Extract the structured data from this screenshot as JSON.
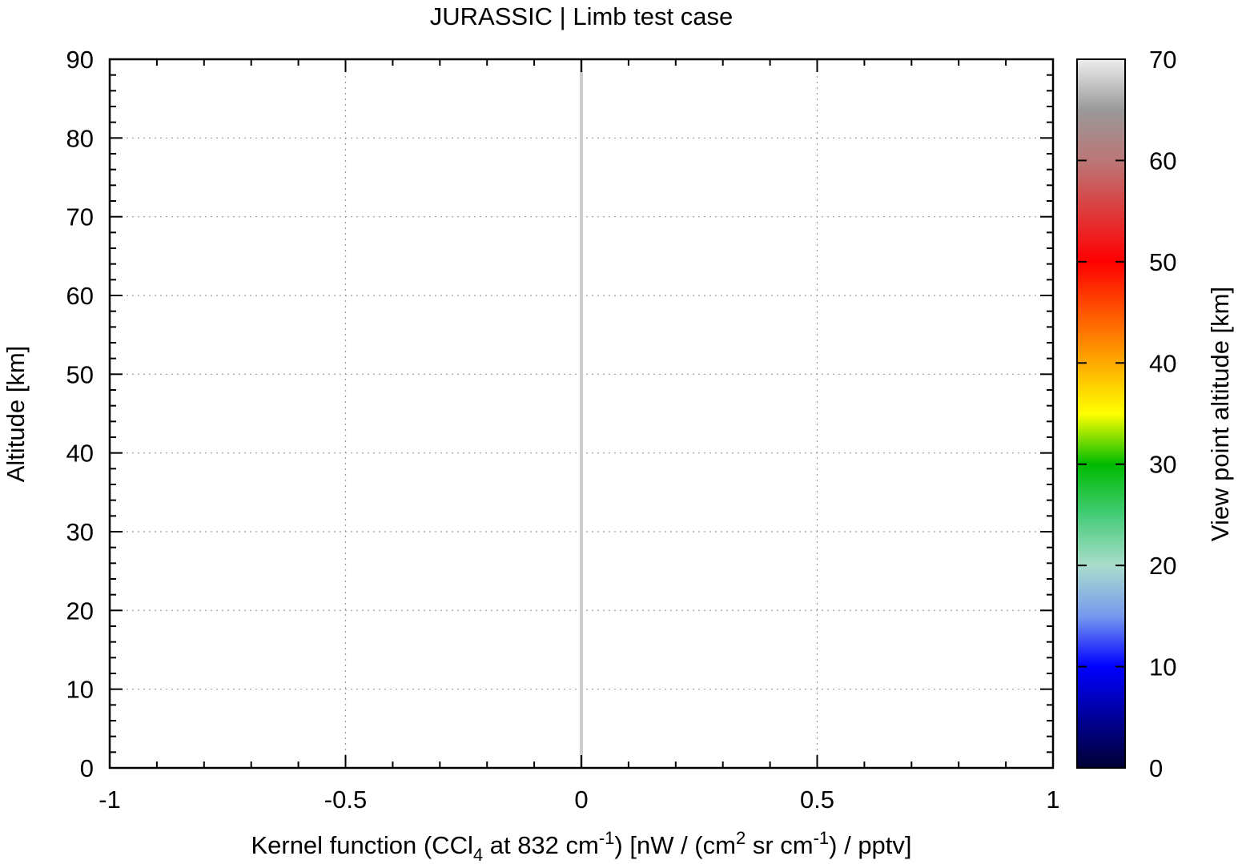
{
  "chart_data": {
    "type": "line",
    "title": "JURASSIC | Limb test case",
    "xlabel": {
      "p1": "Kernel function (CCl",
      "sub": "4",
      "p2": " at 832 cm",
      "sup1": "-1",
      "p3": ") [nW / (cm",
      "sup2": "2",
      "p4": " sr cm",
      "sup3": "-1",
      "p5": ") / pptv]"
    },
    "ylabel": "Altitude [km]",
    "colorbar_label": "View point altitude [km]",
    "xlim": [
      -1,
      1
    ],
    "ylim": [
      0,
      90
    ],
    "xticks": [
      -1,
      -0.5,
      0,
      0.5,
      1
    ],
    "xtick_labels": [
      "-1",
      "-0.5",
      "0",
      "0.5",
      "1"
    ],
    "yticks": [
      0,
      10,
      20,
      30,
      40,
      50,
      60,
      70,
      80,
      90
    ],
    "ytick_labels": [
      "0",
      "10",
      "20",
      "30",
      "40",
      "50",
      "60",
      "70",
      "80",
      "90"
    ],
    "colorbar_range": [
      0,
      70
    ],
    "colorbar_ticks": [
      0,
      10,
      20,
      30,
      40,
      50,
      60,
      70
    ],
    "colorbar_tick_labels": [
      "0",
      "10",
      "20",
      "30",
      "40",
      "50",
      "60",
      "70"
    ],
    "colorbar_colors": [
      {
        "v": 0,
        "c": "#000033"
      },
      {
        "v": 10,
        "c": "#0000ff"
      },
      {
        "v": 15,
        "c": "#7799ee"
      },
      {
        "v": 20,
        "c": "#aaddcc"
      },
      {
        "v": 25,
        "c": "#44cc77"
      },
      {
        "v": 30,
        "c": "#00bb00"
      },
      {
        "v": 35,
        "c": "#ffff00"
      },
      {
        "v": 40,
        "c": "#ffaa00"
      },
      {
        "v": 50,
        "c": "#ff0000"
      },
      {
        "v": 60,
        "c": "#bb7777"
      },
      {
        "v": 65,
        "c": "#999999"
      },
      {
        "v": 70,
        "c": "#eeeeee"
      }
    ],
    "grid": true,
    "series": [
      {
        "color": "#cccccc",
        "points": [
          [
            0,
            0
          ],
          [
            0,
            90
          ]
        ]
      }
    ]
  }
}
